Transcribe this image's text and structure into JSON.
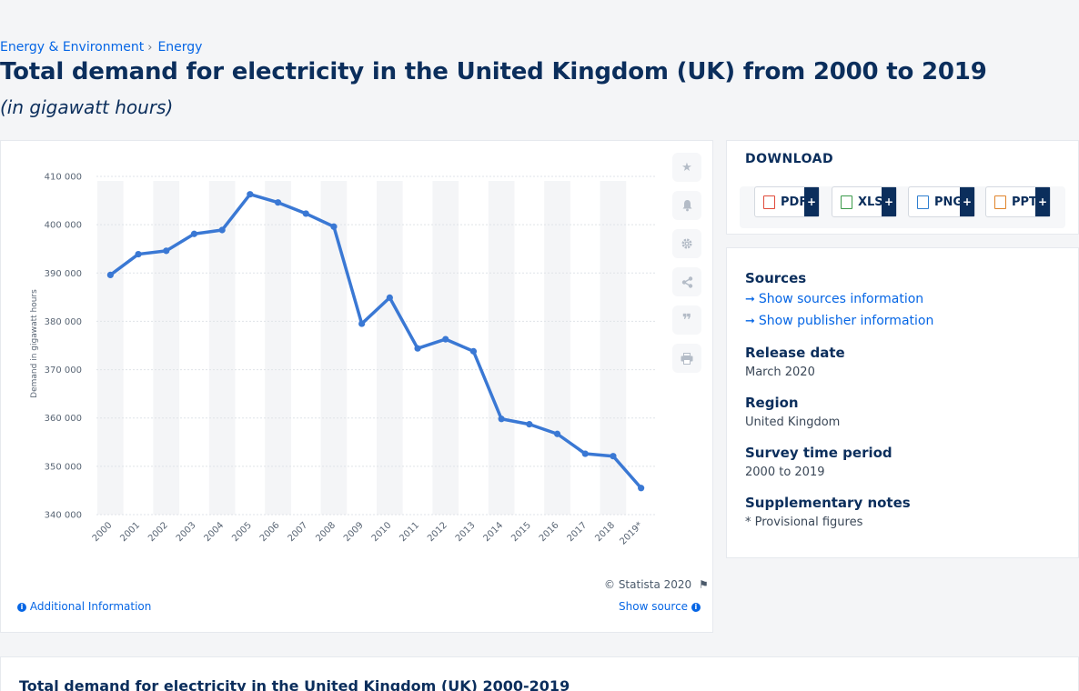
{
  "breadcrumb": {
    "items": [
      "Energy & Environment",
      "Energy"
    ],
    "separator": "›"
  },
  "header": {
    "title": "Total demand for electricity in the United Kingdom (UK) from 2000 to 2019",
    "subtitle": "(in gigawatt hours)"
  },
  "chart_data": {
    "type": "line",
    "categories": [
      "2000",
      "2001",
      "2002",
      "2003",
      "2004",
      "2005",
      "2006",
      "2007",
      "2008",
      "2009",
      "2010",
      "2011",
      "2012",
      "2013",
      "2014",
      "2015",
      "2016",
      "2017",
      "2018",
      "2019*"
    ],
    "series": [
      {
        "values": [
          389600,
          393900,
          394600,
          398100,
          398900,
          406300,
          404600,
          402300,
          399600,
          379500,
          384900,
          374400,
          376300,
          373800,
          359800,
          358700,
          356700,
          352600,
          352100,
          345500
        ]
      }
    ],
    "ylabel": "Demand in gigawatt hours",
    "ylim": [
      340000,
      410000
    ],
    "yticks": [
      340000,
      350000,
      360000,
      370000,
      380000,
      390000,
      400000,
      410000
    ],
    "ytick_labels": [
      "340 000",
      "350 000",
      "360 000",
      "370 000",
      "380 000",
      "390 000",
      "400 000",
      "410 000"
    ],
    "grid": true,
    "line_color": "#3a78d4"
  },
  "chart_footer": {
    "copyright": "© Statista 2020",
    "additional_info": "Additional Information",
    "show_source": "Show source"
  },
  "toolbar": {
    "icons": [
      "star-icon",
      "bell-icon",
      "gear-icon",
      "share-icon",
      "quote-icon",
      "print-icon"
    ]
  },
  "download": {
    "title": "DOWNLOAD",
    "buttons": [
      {
        "label": "PDF",
        "color": "#e04a3a"
      },
      {
        "label": "XLS",
        "color": "#3a9a4a"
      },
      {
        "label": "PNG",
        "color": "#2f7fd0"
      },
      {
        "label": "PPT",
        "color": "#e0842a"
      }
    ],
    "plus": "+"
  },
  "meta": {
    "sources_heading": "Sources",
    "show_sources": "Show sources information",
    "show_publisher": "Show publisher information",
    "release_heading": "Release date",
    "release_value": "March 2020",
    "region_heading": "Region",
    "region_value": "United Kingdom",
    "survey_heading": "Survey time period",
    "survey_value": "2000 to 2019",
    "notes_heading": "Supplementary notes",
    "notes_value": "* Provisional figures"
  },
  "bottom": {
    "title": "Total demand for electricity in the United Kingdom (UK) 2000-2019"
  }
}
